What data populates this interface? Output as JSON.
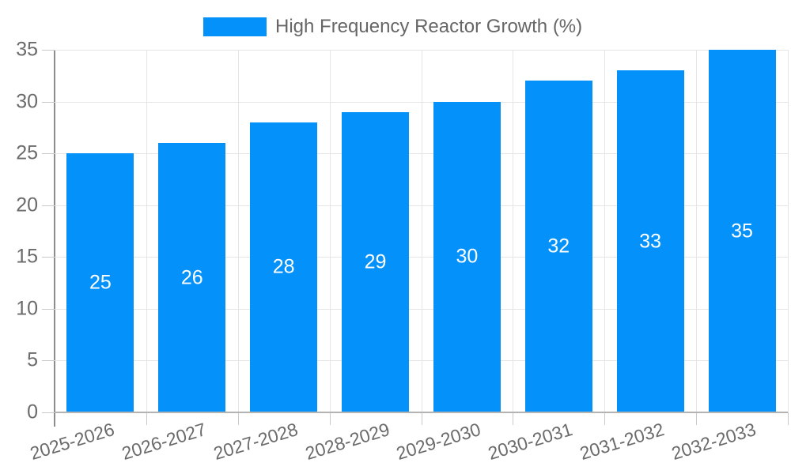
{
  "chart_data": {
    "type": "bar",
    "title": "",
    "legend": "High Frequency Reactor Growth (%)",
    "legend_position": "top",
    "categories": [
      "2025-2026",
      "2026-2027",
      "2027-2028",
      "2028-2029",
      "2029-2030",
      "2030-2031",
      "2031-2032",
      "2032-2033"
    ],
    "series": [
      {
        "name": "High Frequency Reactor Growth (%)",
        "values": [
          25,
          26,
          28,
          29,
          30,
          32,
          33,
          35
        ]
      }
    ],
    "xlabel": "",
    "ylabel": "",
    "ylim": [
      0,
      35
    ],
    "yticks": [
      0,
      5,
      10,
      15,
      20,
      25,
      30,
      35
    ],
    "grid": true,
    "x_label_rotation_deg": -17,
    "colors": {
      "bar": "#0591fa",
      "bar_label": "#ffffff",
      "grid_line": "#e5e5e5",
      "axis_line": "#8c8c8c",
      "baseline": "#b3b3b3",
      "tick_mark": "#c9c9c9",
      "tick_text": "#6b6b6b",
      "legend_text": "#666666"
    }
  }
}
